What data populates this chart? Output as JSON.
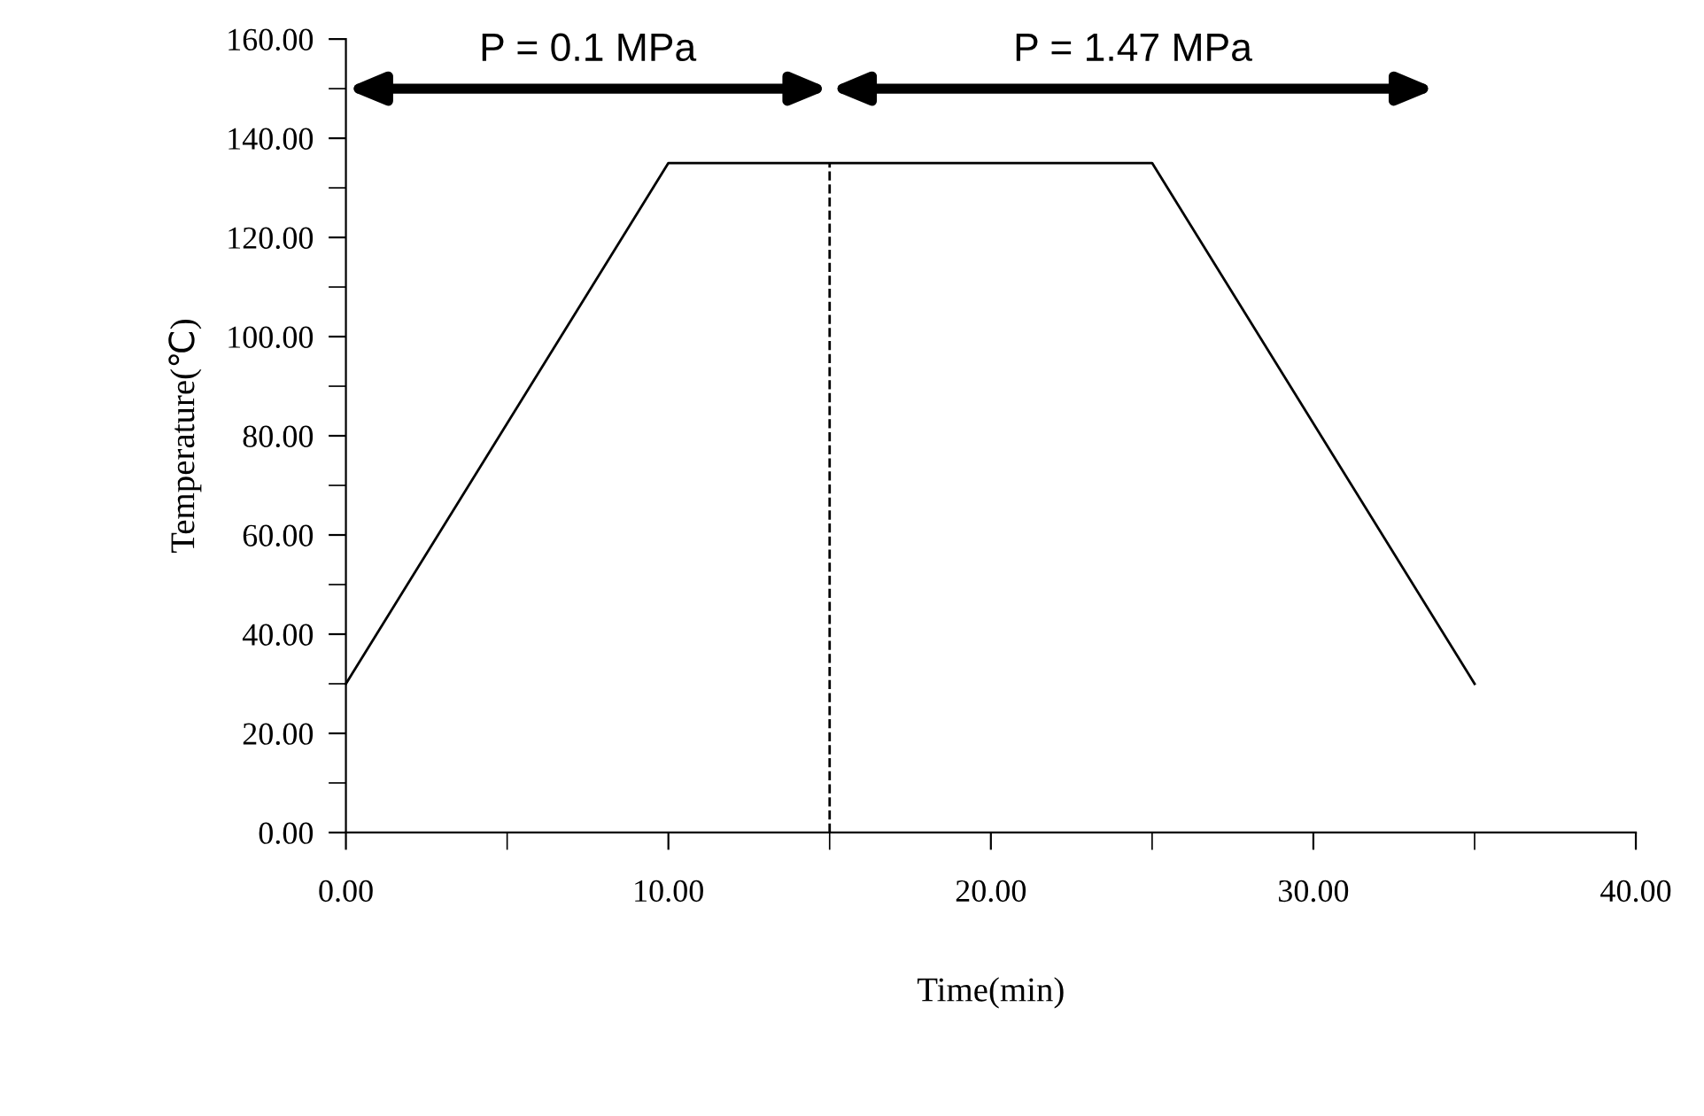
{
  "chart_data": {
    "type": "line",
    "xlabel": "Time(min)",
    "ylabel": "Temperature(℃)",
    "x": [
      0,
      10,
      25,
      35
    ],
    "series": [
      {
        "color": "#000000",
        "values": [
          30,
          135,
          135,
          30
        ]
      }
    ],
    "xlim": [
      0,
      40
    ],
    "xticks": [
      {
        "value": 0,
        "label": "0.00"
      },
      {
        "value": 5,
        "label": null
      },
      {
        "value": 10,
        "label": "10.00"
      },
      {
        "value": 15,
        "label": null
      },
      {
        "value": 20,
        "label": "20.00"
      },
      {
        "value": 25,
        "label": null
      },
      {
        "value": 30,
        "label": "30.00"
      },
      {
        "value": 35,
        "label": null
      },
      {
        "value": 40,
        "label": "40.00"
      }
    ],
    "ylim": [
      0,
      160
    ],
    "yticks": [
      {
        "value": 0,
        "label": "0.00"
      },
      {
        "value": 10,
        "label": null
      },
      {
        "value": 20,
        "label": "20.00"
      },
      {
        "value": 30,
        "label": null
      },
      {
        "value": 40,
        "label": "40.00"
      },
      {
        "value": 50,
        "label": null
      },
      {
        "value": 60,
        "label": "60.00"
      },
      {
        "value": 70,
        "label": null
      },
      {
        "value": 80,
        "label": "80.00"
      },
      {
        "value": 90,
        "label": null
      },
      {
        "value": 100,
        "label": "100.00"
      },
      {
        "value": 110,
        "label": null
      },
      {
        "value": 120,
        "label": "120.00"
      },
      {
        "value": 130,
        "label": null
      },
      {
        "value": 140,
        "label": "140.00"
      },
      {
        "value": 150,
        "label": null
      },
      {
        "value": 160,
        "label": "160.00"
      }
    ],
    "ref_lines": [
      {
        "axis": "x",
        "value": 15,
        "label": null,
        "color": "#000000",
        "line_style": "dashed"
      }
    ],
    "annotations": [
      "P = 0.1 MPa",
      "P = 1.47 MPa"
    ],
    "grid": false,
    "marker": "none",
    "line_style": "solid"
  }
}
